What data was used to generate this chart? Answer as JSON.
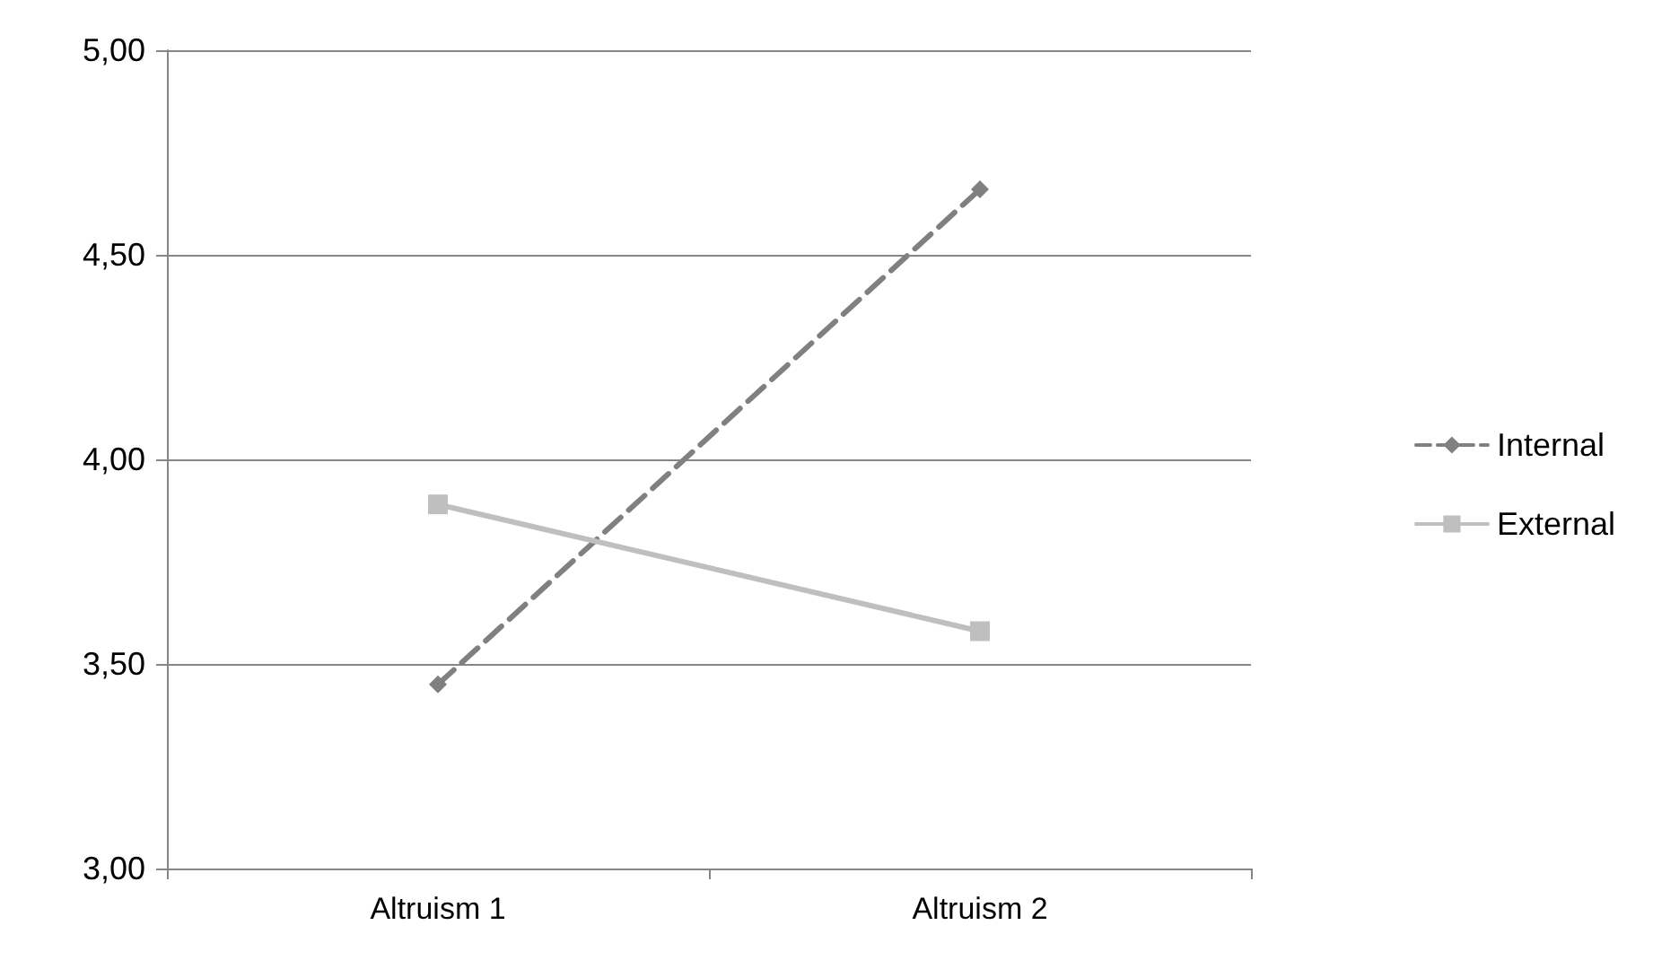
{
  "chart_data": {
    "type": "line",
    "categories": [
      "Altruism 1",
      "Altruism 2"
    ],
    "series": [
      {
        "name": "Internal",
        "color": "#808080",
        "values": [
          3.45,
          4.66
        ],
        "marker": "diamond",
        "line_style": "dashed"
      },
      {
        "name": "External",
        "color": "#bfbfbf",
        "values": [
          3.89,
          3.58
        ],
        "marker": "square",
        "line_style": "solid"
      }
    ],
    "ylim": [
      3,
      5
    ],
    "yticks": [
      {
        "value": 3,
        "label": "3,00"
      },
      {
        "value": 3.5,
        "label": "3,50"
      },
      {
        "value": 4,
        "label": "4,00"
      },
      {
        "value": 4.5,
        "label": "4,50"
      },
      {
        "value": 5,
        "label": "5,00"
      }
    ],
    "grid": "y",
    "legend": "right"
  }
}
